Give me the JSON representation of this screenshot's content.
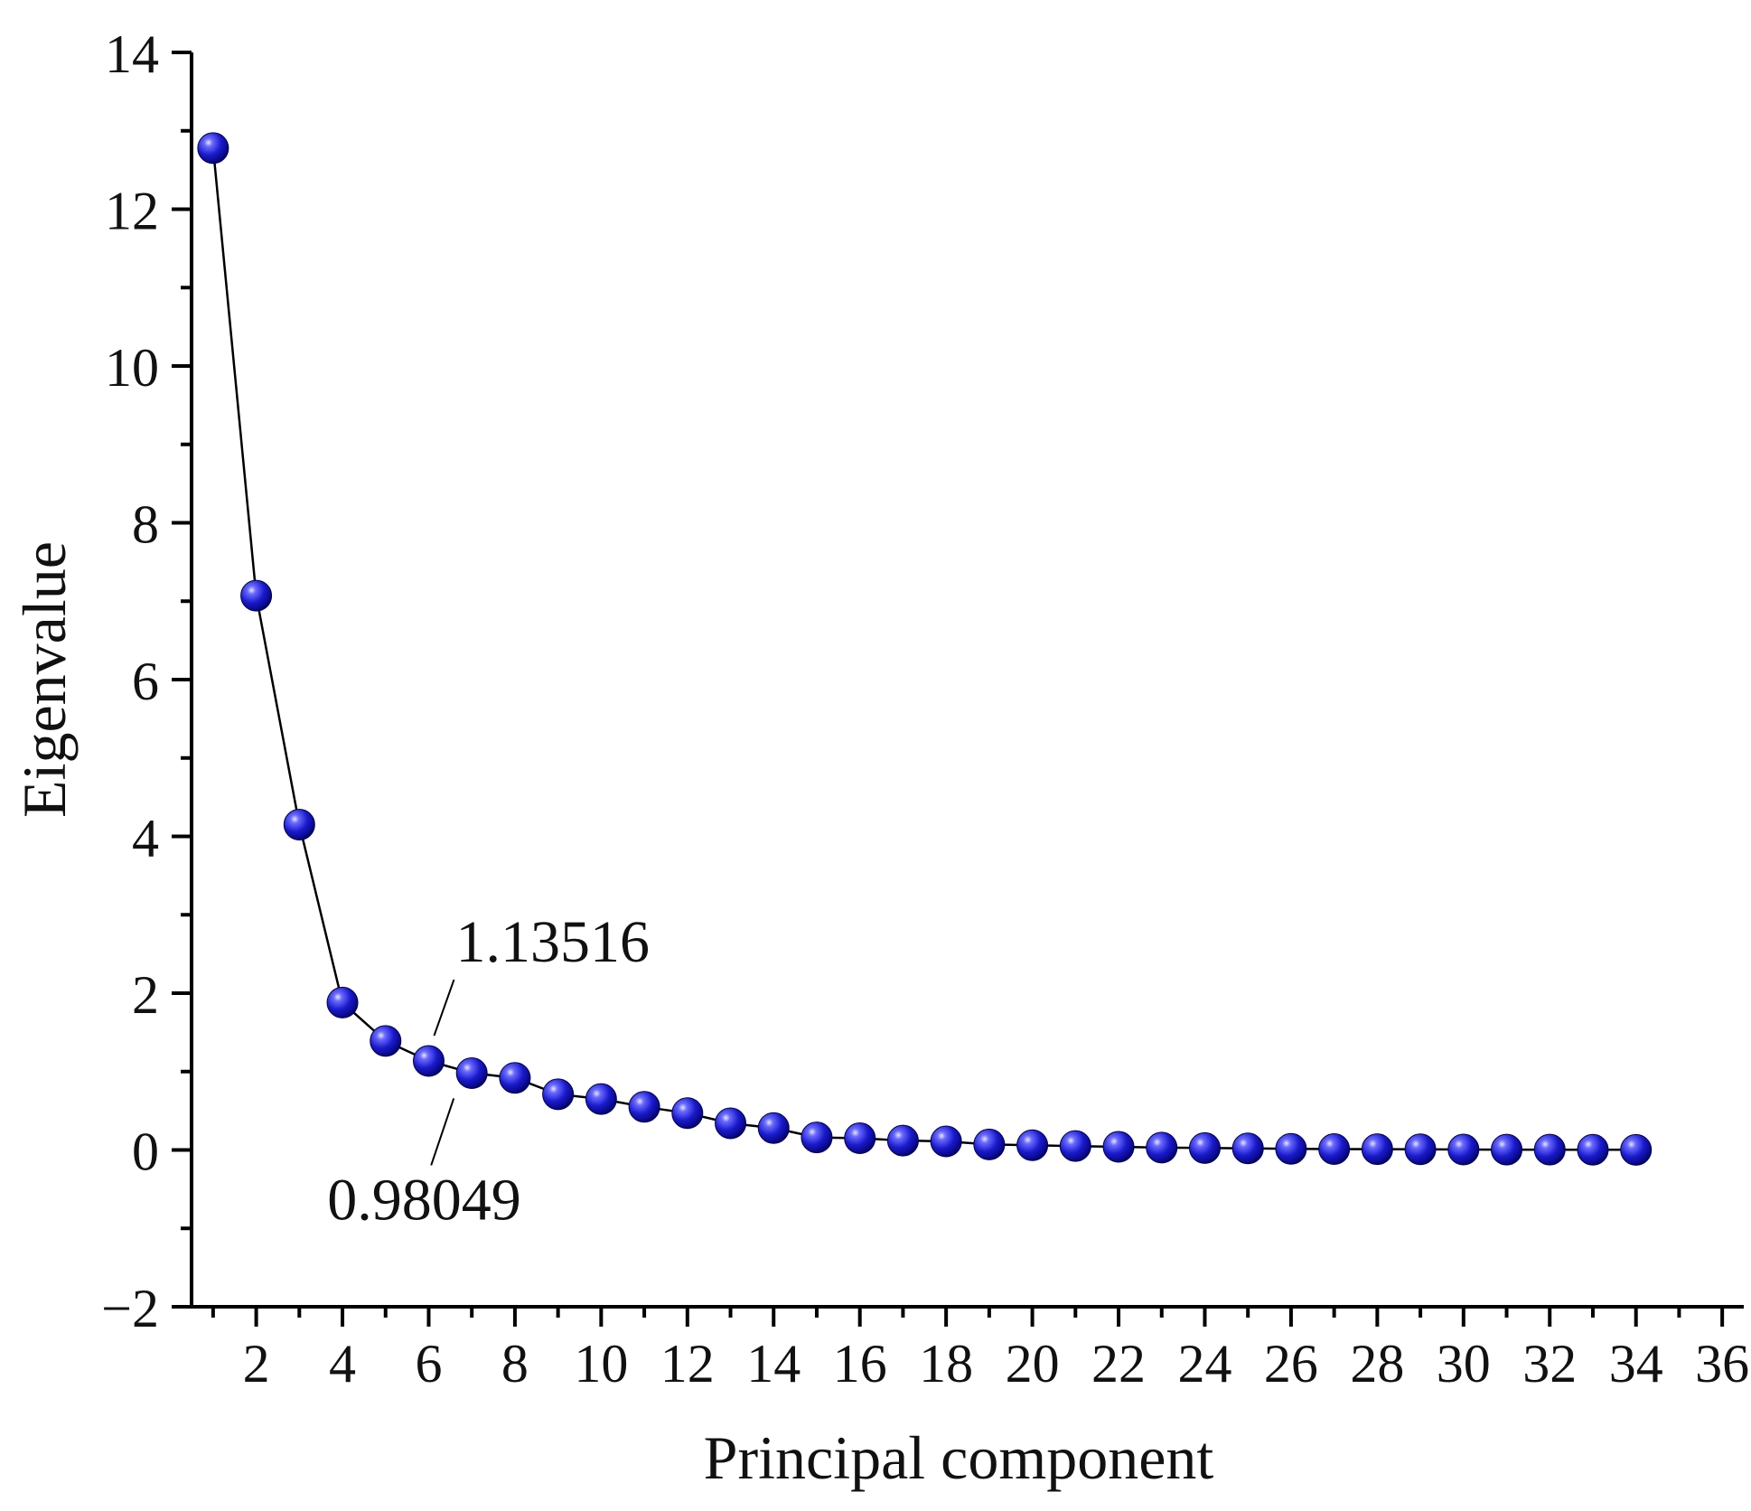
{
  "chart_data": {
    "type": "scatter",
    "title": "",
    "xlabel": "Principal component",
    "ylabel": "Eigenvalue",
    "xlim": [
      0.5,
      36.5
    ],
    "ylim": [
      -2,
      14
    ],
    "x_ticks": [
      2,
      4,
      6,
      8,
      10,
      12,
      14,
      16,
      18,
      20,
      22,
      24,
      26,
      28,
      30,
      32,
      34,
      36
    ],
    "x_tick_labels": [
      "2",
      "4",
      "6",
      "8",
      "10",
      "12",
      "14",
      "16",
      "18",
      "20",
      "22",
      "24",
      "26",
      "28",
      "30",
      "32",
      "34",
      "36"
    ],
    "y_ticks": [
      -2,
      0,
      2,
      4,
      6,
      8,
      10,
      12,
      14
    ],
    "y_tick_labels": [
      "−2",
      "0",
      "2",
      "4",
      "6",
      "8",
      "10",
      "12",
      "14"
    ],
    "grid": false,
    "marker_color": "#1a1acc",
    "line_color": "#000000",
    "series": [
      {
        "name": "Eigenvalue",
        "x": [
          1,
          2,
          3,
          4,
          5,
          6,
          7,
          8,
          9,
          10,
          11,
          12,
          13,
          14,
          15,
          16,
          17,
          18,
          19,
          20,
          21,
          22,
          23,
          24,
          25,
          26,
          27,
          28,
          29,
          30,
          31,
          32,
          33,
          34
        ],
        "values": [
          12.78,
          7.07,
          4.15,
          1.88,
          1.39,
          1.13516,
          0.98049,
          0.92,
          0.71,
          0.65,
          0.55,
          0.47,
          0.34,
          0.28,
          0.16,
          0.15,
          0.12,
          0.11,
          0.07,
          0.06,
          0.05,
          0.04,
          0.03,
          0.025,
          0.02,
          0.015,
          0.012,
          0.01,
          0.008,
          0.006,
          0.005,
          0.004,
          0.003,
          0.002
        ]
      }
    ],
    "annotations": [
      {
        "text": "1.13516",
        "x": 6,
        "y": 1.13516
      },
      {
        "text": "0.98049",
        "x": 7,
        "y": 0.98049
      }
    ]
  }
}
